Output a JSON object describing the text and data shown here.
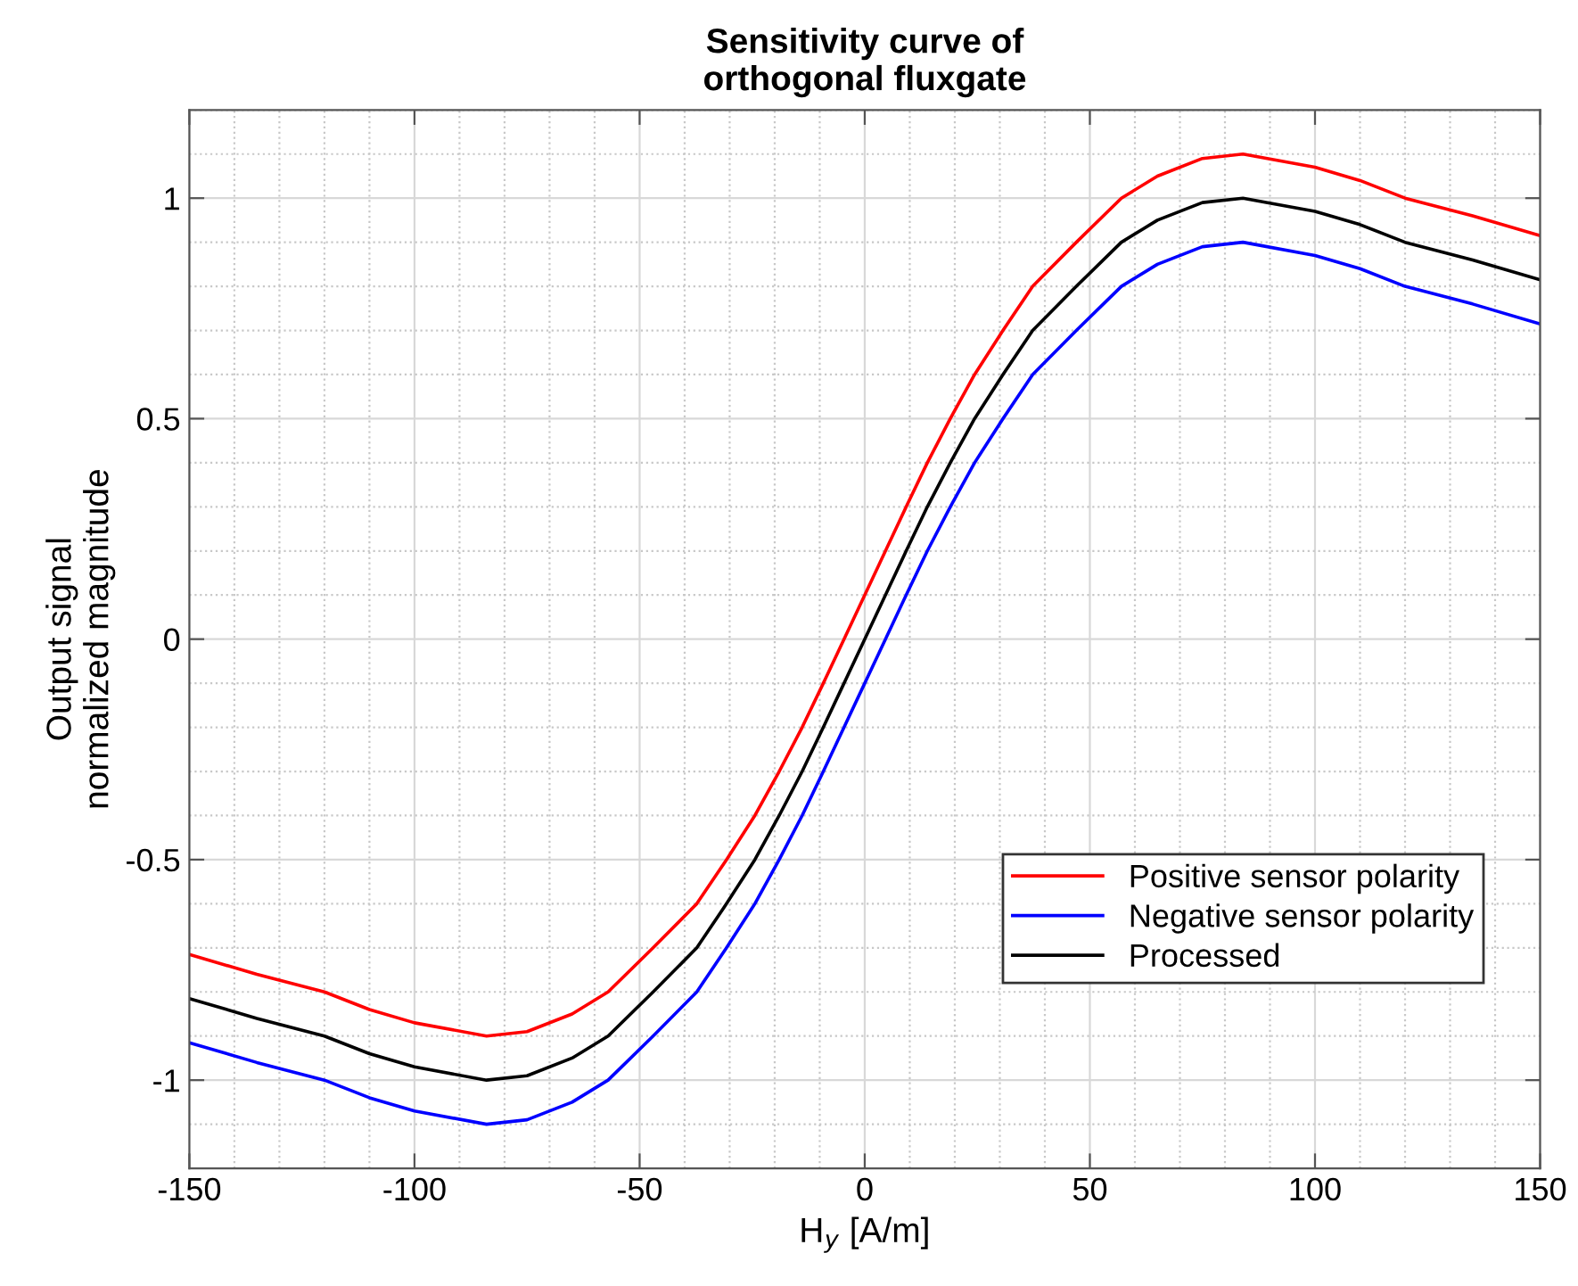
{
  "chart_data": {
    "type": "line",
    "title": "Sensitivity curve of\northogonal fluxgate",
    "xlabel": "H$_{y}$ [A/m]",
    "ylabel": "Output signal\nnormalized magnitude",
    "x": [
      -150,
      -135,
      -120,
      -110,
      -100,
      -84,
      -75,
      -65,
      -57,
      -47,
      -37.3,
      -30.7,
      -24.4,
      -19,
      -13.9,
      -9.2,
      -4.6,
      0,
      4.6,
      9.2,
      13.9,
      19,
      24.4,
      30.7,
      37.3,
      47,
      57,
      65,
      75,
      84,
      100,
      110,
      120,
      135,
      150
    ],
    "series": [
      {
        "name": "Positive sensor polarity",
        "color": "#ff0000",
        "values": [
          -0.715,
          -0.76,
          -0.8,
          -0.84,
          -0.87,
          -0.9,
          -0.89,
          -0.85,
          -0.8,
          -0.7,
          -0.6,
          -0.5,
          -0.4,
          -0.3,
          -0.2,
          -0.1,
          0.0,
          0.1,
          0.2,
          0.3,
          0.4,
          0.5,
          0.6,
          0.7,
          0.8,
          0.9,
          1.0,
          1.05,
          1.09,
          1.1,
          1.07,
          1.04,
          1.0,
          0.96,
          0.915
        ]
      },
      {
        "name": "Negative sensor polarity",
        "color": "#0000ff",
        "values": [
          -0.915,
          -0.96,
          -1.0,
          -1.04,
          -1.07,
          -1.1,
          -1.09,
          -1.05,
          -1.0,
          -0.9,
          -0.8,
          -0.7,
          -0.6,
          -0.5,
          -0.4,
          -0.3,
          -0.2,
          -0.1,
          0.0,
          0.1,
          0.2,
          0.3,
          0.4,
          0.5,
          0.6,
          0.7,
          0.8,
          0.85,
          0.89,
          0.9,
          0.87,
          0.84,
          0.8,
          0.76,
          0.715
        ]
      },
      {
        "name": "Processed",
        "color": "#000000",
        "values": [
          -0.815,
          -0.86,
          -0.9,
          -0.94,
          -0.97,
          -1.0,
          -0.99,
          -0.95,
          -0.9,
          -0.8,
          -0.7,
          -0.6,
          -0.5,
          -0.4,
          -0.3,
          -0.2,
          -0.1,
          0.0,
          0.1,
          0.2,
          0.3,
          0.4,
          0.5,
          0.6,
          0.7,
          0.8,
          0.9,
          0.95,
          0.99,
          1.0,
          0.97,
          0.94,
          0.9,
          0.86,
          0.815
        ]
      }
    ],
    "xlim": [
      -150,
      150
    ],
    "ylim": [
      -1.2,
      1.2
    ],
    "xticks": [
      -150,
      -100,
      -50,
      0,
      50,
      100,
      150
    ],
    "yticks": [
      -1,
      -0.5,
      0,
      0.5,
      1
    ],
    "grid": true,
    "legend": "bottom right",
    "line_style": "solid",
    "marker": "none"
  }
}
